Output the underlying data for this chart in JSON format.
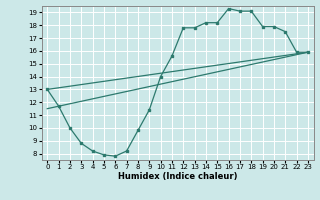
{
  "xlabel": "Humidex (Indice chaleur)",
  "bg_color": "#cce8e8",
  "grid_color": "#ffffff",
  "line_color": "#2d7a6e",
  "xlim": [
    -0.5,
    23.5
  ],
  "ylim": [
    7.5,
    19.5
  ],
  "xticks": [
    0,
    1,
    2,
    3,
    4,
    5,
    6,
    7,
    8,
    9,
    10,
    11,
    12,
    13,
    14,
    15,
    16,
    17,
    18,
    19,
    20,
    21,
    22,
    23
  ],
  "yticks": [
    8,
    9,
    10,
    11,
    12,
    13,
    14,
    15,
    16,
    17,
    18,
    19
  ],
  "line1_x": [
    0,
    1,
    2,
    3,
    4,
    5,
    6,
    7,
    8,
    9,
    10,
    11,
    12,
    13,
    14,
    15,
    16,
    17,
    18,
    19,
    20,
    21,
    22,
    23
  ],
  "line1_y": [
    13.0,
    11.7,
    10.0,
    8.8,
    8.2,
    7.9,
    7.8,
    8.2,
    9.8,
    11.4,
    14.0,
    15.6,
    17.8,
    17.8,
    18.2,
    18.2,
    19.3,
    19.1,
    19.1,
    17.9,
    17.9,
    17.5,
    15.9,
    15.9
  ],
  "line2_x": [
    0,
    23
  ],
  "line2_y": [
    13.0,
    15.9
  ],
  "line3_x": [
    0,
    23
  ],
  "line3_y": [
    11.5,
    15.9
  ]
}
